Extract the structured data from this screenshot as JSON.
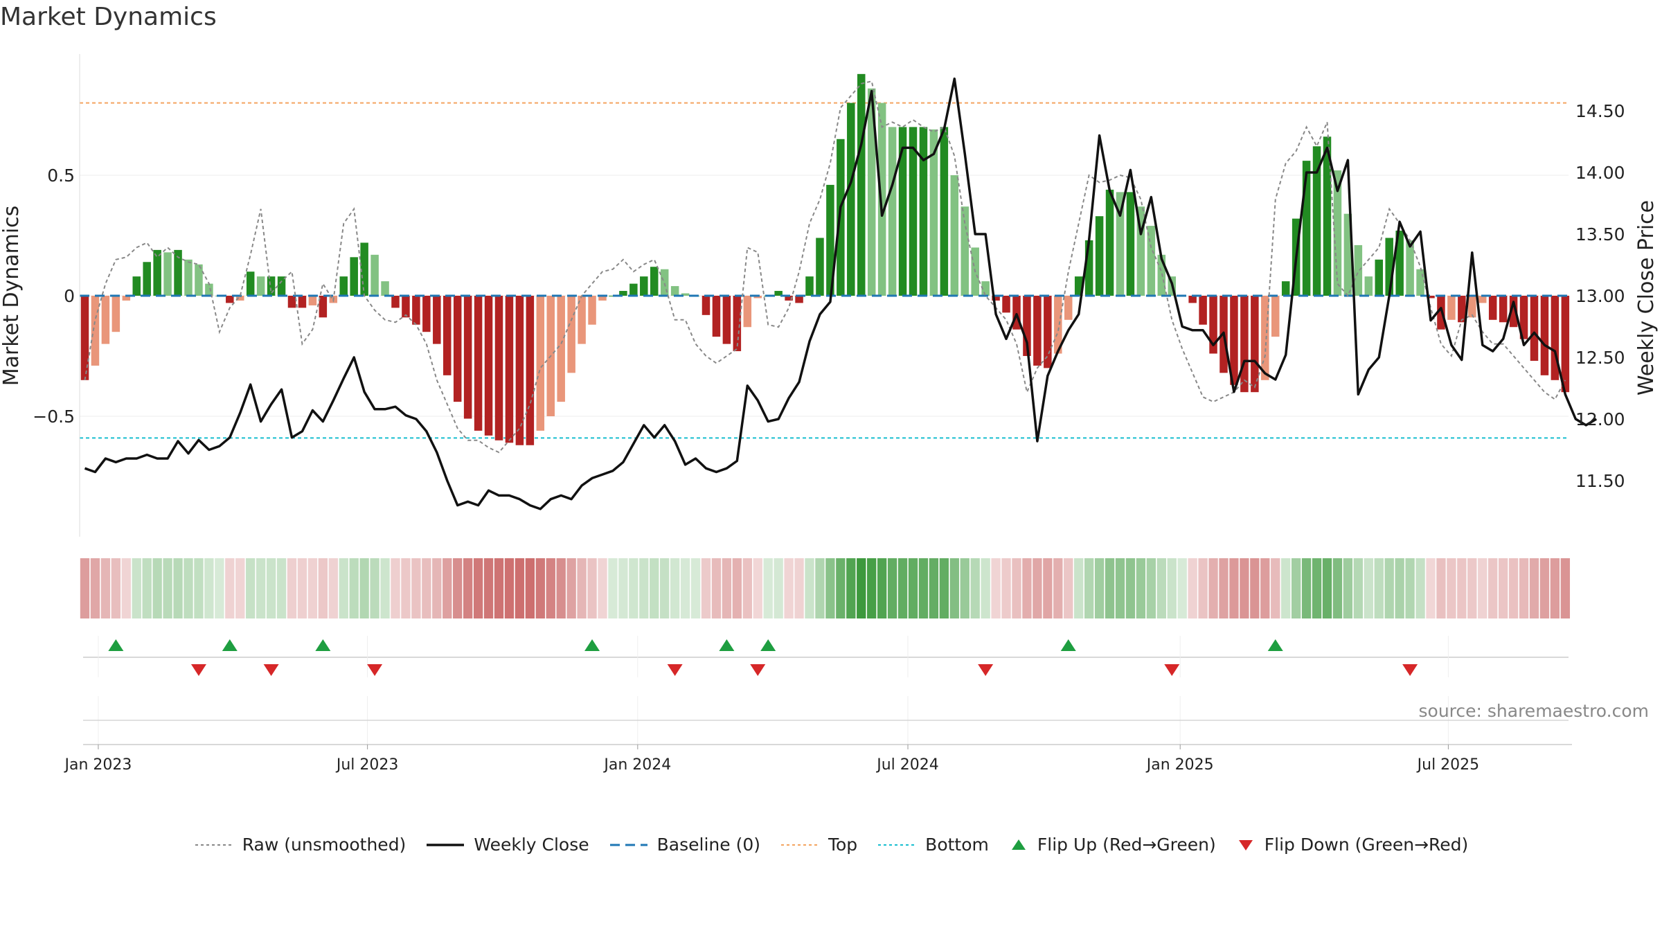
{
  "page": {
    "title": "Market Dynamics",
    "source": "source: sharemaestro.com"
  },
  "colors": {
    "strong_green": "#228b22",
    "light_green": "#82c282",
    "strong_red": "#b22222",
    "light_red": "#e9967a",
    "close_line": "#111111",
    "raw_line": "#888888",
    "baseline": "#1f77b4",
    "top": "#f4a460",
    "bottom": "#17becf",
    "flip_up": "#1e9e40",
    "flip_down": "#d62728"
  },
  "legend": [
    {
      "key": "raw",
      "label": "Raw (unsmoothed)",
      "style": "dotted",
      "color": "#888888"
    },
    {
      "key": "close",
      "label": "Weekly Close",
      "style": "solid",
      "color": "#111111"
    },
    {
      "key": "baseline",
      "label": "Baseline (0)",
      "style": "dashed",
      "color": "#1f77b4"
    },
    {
      "key": "top",
      "label": "Top",
      "style": "dotted",
      "color": "#f4a460"
    },
    {
      "key": "bottom",
      "label": "Bottom",
      "style": "dotted",
      "color": "#17becf"
    },
    {
      "key": "flip_up",
      "label": "Flip Up (Red→Green)",
      "style": "tri-up",
      "color": "#1e9e40"
    },
    {
      "key": "flip_down",
      "label": "Flip Down (Green→Red)",
      "style": "tri-down",
      "color": "#d62728"
    }
  ],
  "chart_data": {
    "type": "bar",
    "title": "Market Dynamics",
    "ylabel": "Market Dynamics",
    "y2label": "Weekly Close Price",
    "ylim": [
      -0.99,
      0.99
    ],
    "y2lim": [
      11.08,
      14.9
    ],
    "yticks": [
      -0.5,
      0,
      0.5
    ],
    "ytick_labels": [
      "−0.5",
      "0",
      "0.5"
    ],
    "y2ticks": [
      11.5,
      12.0,
      12.5,
      13.0,
      13.5,
      14.0,
      14.5
    ],
    "y2tick_labels": [
      "11.50",
      "12.00",
      "12.50",
      "13.00",
      "13.50",
      "14.00",
      "14.50"
    ],
    "x_start": "2022-12-23",
    "x_ticks": [
      "Jan 2023",
      "Jul 2023",
      "Jan 2024",
      "Jul 2024",
      "Jan 2025",
      "Jul 2025"
    ],
    "top_level": 0.8,
    "bottom_level": -0.59,
    "baseline": 0,
    "grid": true,
    "legend_position": "bottom",
    "series": [
      {
        "name": "Market Dynamics",
        "values": [
          -0.35,
          -0.29,
          -0.2,
          -0.15,
          -0.02,
          0.08,
          0.14,
          0.19,
          0.18,
          0.19,
          0.15,
          0.13,
          0.05,
          0.0,
          -0.03,
          -0.02,
          0.1,
          0.08,
          0.08,
          0.08,
          -0.05,
          -0.05,
          -0.04,
          -0.09,
          -0.03,
          0.08,
          0.16,
          0.22,
          0.17,
          0.06,
          -0.05,
          -0.09,
          -0.12,
          -0.15,
          -0.2,
          -0.33,
          -0.44,
          -0.51,
          -0.56,
          -0.58,
          -0.6,
          -0.61,
          -0.62,
          -0.62,
          -0.56,
          -0.5,
          -0.44,
          -0.32,
          -0.2,
          -0.12,
          -0.02,
          0.0,
          0.02,
          0.05,
          0.08,
          0.12,
          0.11,
          0.04,
          0.01,
          0.0,
          -0.08,
          -0.17,
          -0.2,
          -0.23,
          -0.13,
          -0.01,
          0.0,
          0.02,
          -0.02,
          -0.03,
          0.08,
          0.24,
          0.46,
          0.65,
          0.8,
          0.92,
          0.86,
          0.8,
          0.7,
          0.7,
          0.7,
          0.7,
          0.69,
          0.7,
          0.5,
          0.37,
          0.2,
          0.06,
          -0.02,
          -0.07,
          -0.14,
          -0.25,
          -0.29,
          -0.3,
          -0.24,
          -0.1,
          0.08,
          0.23,
          0.33,
          0.44,
          0.43,
          0.43,
          0.37,
          0.29,
          0.17,
          0.08,
          0.0,
          -0.03,
          -0.12,
          -0.24,
          -0.32,
          -0.37,
          -0.4,
          -0.4,
          -0.35,
          -0.17,
          0.06,
          0.32,
          0.56,
          0.62,
          0.66,
          0.52,
          0.34,
          0.21,
          0.08,
          0.15,
          0.24,
          0.27,
          0.23,
          0.11,
          -0.01,
          -0.14,
          -0.1,
          -0.11,
          -0.09,
          -0.03,
          -0.1,
          -0.11,
          -0.13,
          -0.18,
          -0.27,
          -0.33,
          -0.35,
          -0.4
        ]
      },
      {
        "name": "Raw (unsmoothed)",
        "values": [
          -0.35,
          -0.1,
          0.05,
          0.15,
          0.16,
          0.2,
          0.22,
          0.16,
          0.2,
          0.16,
          0.14,
          0.13,
          0.05,
          -0.15,
          -0.05,
          0.0,
          0.17,
          0.36,
          0.01,
          0.06,
          0.1,
          -0.2,
          -0.14,
          0.05,
          -0.02,
          0.3,
          0.36,
          0.0,
          -0.06,
          -0.1,
          -0.11,
          -0.08,
          -0.12,
          -0.2,
          -0.35,
          -0.45,
          -0.55,
          -0.6,
          -0.6,
          -0.63,
          -0.65,
          -0.6,
          -0.55,
          -0.45,
          -0.3,
          -0.25,
          -0.2,
          -0.1,
          0.0,
          0.05,
          0.1,
          0.11,
          0.15,
          0.1,
          0.13,
          0.15,
          0.05,
          -0.1,
          -0.1,
          -0.2,
          -0.25,
          -0.28,
          -0.25,
          -0.22,
          0.2,
          0.18,
          -0.12,
          -0.13,
          -0.05,
          0.1,
          0.3,
          0.4,
          0.55,
          0.78,
          0.83,
          0.88,
          0.89,
          0.7,
          0.72,
          0.7,
          0.73,
          0.7,
          0.68,
          0.7,
          0.58,
          0.3,
          0.1,
          0.0,
          -0.05,
          -0.1,
          -0.2,
          -0.4,
          -0.3,
          -0.25,
          -0.15,
          0.1,
          0.3,
          0.5,
          0.47,
          0.48,
          0.5,
          0.49,
          0.4,
          0.2,
          0.1,
          -0.1,
          -0.22,
          -0.32,
          -0.42,
          -0.44,
          -0.42,
          -0.4,
          -0.35,
          -0.38,
          -0.25,
          0.4,
          0.55,
          0.6,
          0.7,
          0.62,
          0.72,
          0.05,
          0.0,
          0.1,
          0.15,
          0.2,
          0.36,
          0.3,
          0.23,
          0.12,
          -0.05,
          -0.2,
          -0.25,
          -0.1,
          -0.08,
          -0.15,
          -0.2,
          -0.2,
          -0.25,
          -0.3,
          -0.35,
          -0.4,
          -0.43,
          -0.35
        ]
      },
      {
        "name": "Weekly Close",
        "values": [
          11.6,
          11.57,
          11.68,
          11.65,
          11.68,
          11.68,
          11.71,
          11.68,
          11.68,
          11.82,
          11.72,
          11.83,
          11.75,
          11.78,
          11.85,
          12.05,
          12.28,
          11.98,
          12.12,
          12.24,
          11.85,
          11.9,
          12.07,
          11.98,
          12.15,
          12.33,
          12.5,
          12.22,
          12.08,
          12.08,
          12.1,
          12.03,
          12.0,
          11.9,
          11.73,
          11.5,
          11.3,
          11.33,
          11.3,
          11.42,
          11.38,
          11.38,
          11.35,
          11.3,
          11.27,
          11.35,
          11.38,
          11.35,
          11.46,
          11.52,
          11.55,
          11.58,
          11.65,
          11.8,
          11.95,
          11.85,
          11.95,
          11.82,
          11.63,
          11.68,
          11.6,
          11.57,
          11.6,
          11.66,
          12.27,
          12.15,
          11.98,
          12.0,
          12.17,
          12.3,
          12.63,
          12.85,
          12.95,
          13.72,
          13.92,
          14.23,
          14.66,
          13.65,
          13.9,
          14.2,
          14.2,
          14.1,
          14.15,
          14.35,
          14.76,
          14.15,
          13.5,
          13.5,
          12.85,
          12.65,
          12.85,
          12.62,
          11.82,
          12.35,
          12.55,
          12.72,
          12.85,
          13.45,
          14.3,
          13.85,
          13.65,
          14.02,
          13.5,
          13.8,
          13.3,
          13.1,
          12.75,
          12.72,
          12.72,
          12.6,
          12.7,
          12.22,
          12.47,
          12.47,
          12.37,
          12.32,
          12.52,
          13.3,
          14.0,
          14.0,
          14.2,
          13.85,
          14.1,
          12.2,
          12.4,
          12.5,
          13.0,
          13.6,
          13.4,
          13.52,
          12.8,
          12.9,
          12.6,
          12.48,
          13.35,
          12.6,
          12.55,
          12.65,
          12.95,
          12.6,
          12.7,
          12.6,
          12.55,
          12.2,
          12.0,
          11.95,
          12.0
        ]
      }
    ],
    "flip_up_weeks": [
      3,
      14,
      23,
      49,
      62,
      66,
      95,
      115
    ],
    "flip_down_weeks": [
      11,
      18,
      28,
      57,
      65,
      87,
      105,
      128
    ]
  }
}
